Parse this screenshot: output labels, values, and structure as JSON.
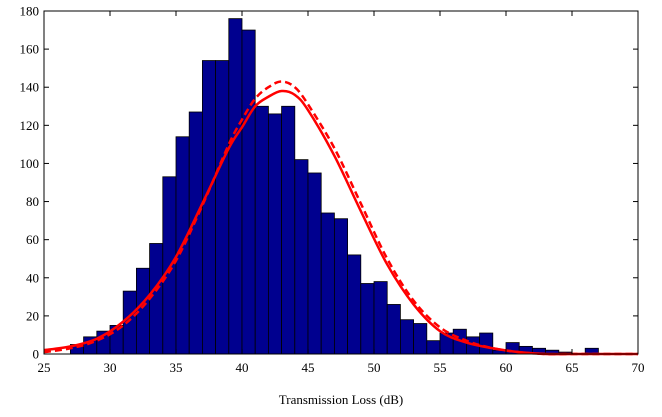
{
  "chart_data": {
    "type": "bar",
    "title": "",
    "xlabel": "Transmission Loss (dB)",
    "ylabel": "",
    "xlim": [
      25,
      70
    ],
    "ylim": [
      0,
      180
    ],
    "xticks": [
      25,
      30,
      35,
      40,
      45,
      50,
      55,
      60,
      65,
      70
    ],
    "yticks": [
      0,
      20,
      40,
      60,
      80,
      100,
      120,
      140,
      160,
      180
    ],
    "grid": false,
    "legend": "none",
    "bin_width": 1,
    "bins": [
      {
        "start": 27,
        "count": 5
      },
      {
        "start": 28,
        "count": 9
      },
      {
        "start": 29,
        "count": 12
      },
      {
        "start": 30,
        "count": 15
      },
      {
        "start": 31,
        "count": 33
      },
      {
        "start": 32,
        "count": 45
      },
      {
        "start": 33,
        "count": 58
      },
      {
        "start": 34,
        "count": 93
      },
      {
        "start": 35,
        "count": 114
      },
      {
        "start": 36,
        "count": 127
      },
      {
        "start": 37,
        "count": 154
      },
      {
        "start": 38,
        "count": 154
      },
      {
        "start": 39,
        "count": 176
      },
      {
        "start": 40,
        "count": 170
      },
      {
        "start": 41,
        "count": 130
      },
      {
        "start": 42,
        "count": 126
      },
      {
        "start": 43,
        "count": 130
      },
      {
        "start": 44,
        "count": 102
      },
      {
        "start": 45,
        "count": 95
      },
      {
        "start": 46,
        "count": 74
      },
      {
        "start": 47,
        "count": 71
      },
      {
        "start": 48,
        "count": 52
      },
      {
        "start": 49,
        "count": 37
      },
      {
        "start": 50,
        "count": 38
      },
      {
        "start": 51,
        "count": 26
      },
      {
        "start": 52,
        "count": 18
      },
      {
        "start": 53,
        "count": 16
      },
      {
        "start": 54,
        "count": 7
      },
      {
        "start": 55,
        "count": 11
      },
      {
        "start": 56,
        "count": 13
      },
      {
        "start": 57,
        "count": 9
      },
      {
        "start": 58,
        "count": 11
      },
      {
        "start": 59,
        "count": 2
      },
      {
        "start": 60,
        "count": 6
      },
      {
        "start": 61,
        "count": 4
      },
      {
        "start": 62,
        "count": 3
      },
      {
        "start": 63,
        "count": 2
      },
      {
        "start": 64,
        "count": 1
      },
      {
        "start": 66,
        "count": 3
      }
    ],
    "curves": [
      {
        "style": "solid",
        "color": "#ff0000",
        "x": [
          25,
          27,
          29,
          31,
          33,
          35,
          37,
          39,
          40,
          41,
          42,
          43,
          44,
          45,
          47,
          49,
          51,
          53,
          55,
          57,
          59,
          61,
          63,
          65,
          67,
          70
        ],
        "y": [
          2,
          4,
          8,
          17,
          31,
          51,
          79,
          108,
          119,
          130,
          135,
          138,
          136,
          128,
          104,
          75,
          47,
          26,
          12,
          6,
          3,
          1,
          0,
          0,
          0,
          0
        ]
      },
      {
        "style": "dashed",
        "color": "#ff0000",
        "x": [
          25,
          27,
          29,
          31,
          33,
          35,
          37,
          39,
          40,
          41,
          42,
          43,
          44,
          45,
          47,
          49,
          51,
          53,
          55,
          57,
          59,
          61,
          63,
          65,
          67,
          70
        ],
        "y": [
          1,
          3,
          7,
          15,
          29,
          49,
          78,
          110,
          123,
          134,
          140,
          143,
          140,
          131,
          108,
          79,
          50,
          28,
          14,
          7,
          3,
          1,
          0,
          0,
          0,
          0
        ]
      }
    ],
    "colors": {
      "bar_fill": "#00008f",
      "bar_stroke": "#000000",
      "curve": "#ff0000"
    }
  }
}
